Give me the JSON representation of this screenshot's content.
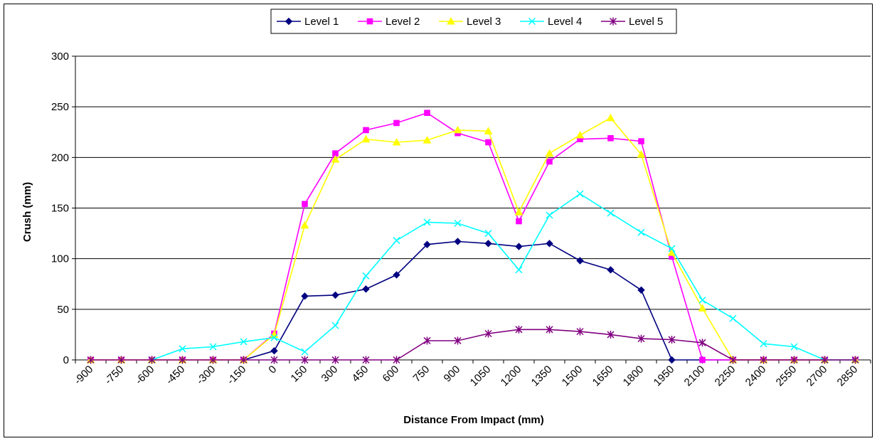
{
  "chart_data": {
    "type": "line",
    "title": "",
    "xlabel": "Distance From Impact (mm)",
    "ylabel": "Crush (mm)",
    "ylim": [
      0,
      300
    ],
    "yticks": [
      0,
      50,
      100,
      150,
      200,
      250,
      300
    ],
    "grid": true,
    "legend_position": "top",
    "categories": [
      "-900",
      "-750",
      "-600",
      "-450",
      "-300",
      "-150",
      "0",
      "150",
      "300",
      "450",
      "600",
      "750",
      "900",
      "1050",
      "1200",
      "1350",
      "1500",
      "1650",
      "1800",
      "1950",
      "2100",
      "2250",
      "2400",
      "2550",
      "2700",
      "2850"
    ],
    "series": [
      {
        "name": "Level 1",
        "color": "#000080",
        "marker": "diamond",
        "points": [
          [
            0,
            null
          ],
          [
            1,
            null
          ],
          [
            2,
            null
          ],
          [
            3,
            null
          ],
          [
            4,
            null
          ],
          [
            5,
            0
          ],
          [
            6,
            9
          ],
          [
            7,
            63
          ],
          [
            8,
            64
          ],
          [
            9,
            70
          ],
          [
            10,
            84
          ],
          [
            11,
            114
          ],
          [
            12,
            117
          ],
          [
            13,
            115
          ],
          [
            14,
            112
          ],
          [
            15,
            115
          ],
          [
            16,
            98
          ],
          [
            17,
            89
          ],
          [
            18,
            69
          ],
          [
            19,
            0
          ],
          [
            20,
            0
          ],
          [
            21,
            0
          ],
          [
            22,
            0
          ],
          [
            23,
            0
          ],
          [
            24,
            0
          ],
          [
            25,
            0
          ]
        ]
      },
      {
        "name": "Level 2",
        "color": "#FF00FF",
        "marker": "square",
        "points": [
          [
            0,
            0
          ],
          [
            1,
            0
          ],
          [
            2,
            0
          ],
          [
            3,
            0
          ],
          [
            4,
            0
          ],
          [
            5,
            0
          ],
          [
            6,
            26
          ],
          [
            7,
            154
          ],
          [
            8,
            204
          ],
          [
            9,
            227
          ],
          [
            10,
            234
          ],
          [
            11,
            244
          ],
          [
            12,
            224
          ],
          [
            13,
            215
          ],
          [
            14,
            137
          ],
          [
            15,
            196
          ],
          [
            16,
            218
          ],
          [
            17,
            219
          ],
          [
            18,
            216
          ],
          [
            19,
            102
          ],
          [
            20,
            0
          ],
          [
            21,
            0
          ],
          [
            22,
            0
          ],
          [
            23,
            0
          ],
          [
            24,
            0
          ],
          [
            25,
            0
          ]
        ]
      },
      {
        "name": "Level 3",
        "color": "#FFFF00",
        "marker": "triangle",
        "points": [
          [
            0,
            0
          ],
          [
            1,
            0
          ],
          [
            2,
            0
          ],
          [
            3,
            0
          ],
          [
            4,
            0
          ],
          [
            5,
            0
          ],
          [
            6,
            25
          ],
          [
            7,
            133
          ],
          [
            8,
            198
          ],
          [
            9,
            218
          ],
          [
            10,
            215
          ],
          [
            11,
            217
          ],
          [
            12,
            227
          ],
          [
            13,
            226
          ],
          [
            14,
            146
          ],
          [
            15,
            204
          ],
          [
            16,
            222
          ],
          [
            17,
            239
          ],
          [
            18,
            203
          ],
          [
            19,
            106
          ],
          [
            20,
            51
          ],
          [
            21,
            0
          ],
          [
            22,
            0
          ],
          [
            23,
            0
          ],
          [
            24,
            0
          ],
          [
            25,
            0
          ]
        ]
      },
      {
        "name": "Level 4",
        "color": "#00FFFF",
        "marker": "x",
        "points": [
          [
            0,
            null
          ],
          [
            1,
            null
          ],
          [
            2,
            0
          ],
          [
            3,
            11
          ],
          [
            4,
            13
          ],
          [
            5,
            18
          ],
          [
            6,
            22
          ],
          [
            7,
            8
          ],
          [
            8,
            34
          ],
          [
            9,
            83
          ],
          [
            10,
            118
          ],
          [
            11,
            136
          ],
          [
            12,
            135
          ],
          [
            13,
            125
          ],
          [
            14,
            89
          ],
          [
            15,
            143
          ],
          [
            16,
            164
          ],
          [
            17,
            145
          ],
          [
            18,
            126
          ],
          [
            19,
            110
          ],
          [
            20,
            59
          ],
          [
            21,
            41
          ],
          [
            22,
            16
          ],
          [
            23,
            13
          ],
          [
            24,
            0
          ],
          [
            25,
            0
          ]
        ]
      },
      {
        "name": "Level 5",
        "color": "#800080",
        "marker": "star",
        "points": [
          [
            0,
            0
          ],
          [
            1,
            0
          ],
          [
            2,
            0
          ],
          [
            3,
            0
          ],
          [
            4,
            0
          ],
          [
            5,
            0
          ],
          [
            6,
            0
          ],
          [
            7,
            0
          ],
          [
            8,
            0
          ],
          [
            9,
            0
          ],
          [
            10,
            0
          ],
          [
            11,
            19
          ],
          [
            12,
            19
          ],
          [
            13,
            26
          ],
          [
            14,
            30
          ],
          [
            15,
            30
          ],
          [
            16,
            28
          ],
          [
            17,
            25
          ],
          [
            18,
            21
          ],
          [
            19,
            20
          ],
          [
            20,
            17
          ],
          [
            21,
            0
          ],
          [
            22,
            0
          ],
          [
            23,
            0
          ],
          [
            24,
            0
          ],
          [
            25,
            0
          ]
        ]
      }
    ]
  }
}
